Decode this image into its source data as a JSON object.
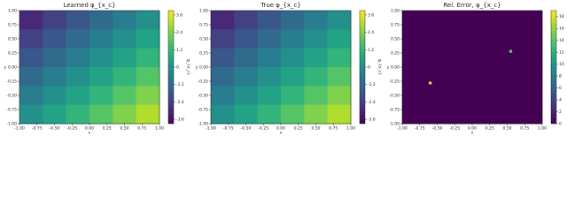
{
  "chart_data": [
    {
      "type": "heatmap",
      "title": "Learned φ_{x_c}",
      "x_label": "x",
      "y_label": "y",
      "colorbar_label": "φ_{x_c}",
      "colormap": "viridis",
      "xlim": [
        -1,
        1
      ],
      "ylim": [
        -1,
        1
      ],
      "xticks": [
        {
          "value": -1,
          "label": "-1.00"
        },
        {
          "value": -0.75,
          "label": "-0.75"
        },
        {
          "value": -0.5,
          "label": "-0.50"
        },
        {
          "value": -0.25,
          "label": "-0.25"
        },
        {
          "value": 0,
          "label": "0.00"
        },
        {
          "value": 0.25,
          "label": "0.25"
        },
        {
          "value": 0.5,
          "label": "0.50"
        },
        {
          "value": 0.75,
          "label": "0.75"
        },
        {
          "value": 1,
          "label": "1.00"
        }
      ],
      "yticks": [
        {
          "value": -1,
          "label": "-1.00"
        },
        {
          "value": -0.75,
          "label": "-0.75"
        },
        {
          "value": -0.5,
          "label": "-0.50"
        },
        {
          "value": -0.25,
          "label": "-0.25"
        },
        {
          "value": 0,
          "label": "0.00"
        },
        {
          "value": 0.25,
          "label": "0.25"
        },
        {
          "value": 0.5,
          "label": "0.50"
        },
        {
          "value": 0.75,
          "label": "0.75"
        },
        {
          "value": 1,
          "label": "1.00"
        }
      ],
      "clim": [
        -3.9,
        3.9
      ],
      "cticks": [
        -3.6,
        -2.4,
        -1.2,
        0,
        1.2,
        2.4,
        3.6
      ],
      "z": [
        [
          -3.0,
          -2.4,
          -1.8,
          -1.2,
          -0.6,
          0.0
        ],
        [
          -2.4,
          -1.8,
          -1.2,
          -0.6,
          0.0,
          0.6
        ],
        [
          -1.8,
          -1.2,
          -0.6,
          0.0,
          0.6,
          1.2
        ],
        [
          -1.2,
          -0.6,
          0.0,
          0.6,
          1.2,
          1.8
        ],
        [
          -0.6,
          0.0,
          0.6,
          1.2,
          1.8,
          2.4
        ],
        [
          0.0,
          0.6,
          1.2,
          1.8,
          2.4,
          3.0
        ]
      ]
    },
    {
      "type": "heatmap",
      "title": "True φ_{x_c}",
      "x_label": "x",
      "y_label": "y",
      "colorbar_label": "φ_{x_c}",
      "colormap": "viridis",
      "xlim": [
        -1,
        1
      ],
      "ylim": [
        -1,
        1
      ],
      "xticks": [
        {
          "value": -1,
          "label": "-1.00"
        },
        {
          "value": -0.75,
          "label": "-0.75"
        },
        {
          "value": -0.5,
          "label": "-0.50"
        },
        {
          "value": -0.25,
          "label": "-0.25"
        },
        {
          "value": 0,
          "label": "0.00"
        },
        {
          "value": 0.25,
          "label": "0.25"
        },
        {
          "value": 0.5,
          "label": "0.50"
        },
        {
          "value": 0.75,
          "label": "0.75"
        },
        {
          "value": 1,
          "label": "1.00"
        }
      ],
      "yticks": [
        {
          "value": -1,
          "label": "-1.00"
        },
        {
          "value": -0.75,
          "label": "-0.75"
        },
        {
          "value": -0.5,
          "label": "-0.50"
        },
        {
          "value": -0.25,
          "label": "-0.25"
        },
        {
          "value": 0,
          "label": "0.00"
        },
        {
          "value": 0.25,
          "label": "0.25"
        },
        {
          "value": 0.5,
          "label": "0.50"
        },
        {
          "value": 0.75,
          "label": "0.75"
        },
        {
          "value": 1,
          "label": "1.00"
        }
      ],
      "clim": [
        -3.9,
        3.9
      ],
      "cticks": [
        -3.6,
        -2.4,
        -1.2,
        0,
        1.2,
        2.4,
        3.6
      ],
      "z": [
        [
          -3.0,
          -2.4,
          -1.8,
          -1.2,
          -0.6,
          0.0
        ],
        [
          -2.4,
          -1.8,
          -1.2,
          -0.6,
          0.0,
          0.6
        ],
        [
          -1.8,
          -1.2,
          -0.6,
          0.0,
          0.6,
          1.2
        ],
        [
          -1.2,
          -0.6,
          0.0,
          0.6,
          1.2,
          1.8
        ],
        [
          -0.6,
          0.0,
          0.6,
          1.2,
          1.8,
          2.4
        ],
        [
          0.0,
          0.6,
          1.2,
          1.8,
          2.4,
          3.0
        ]
      ]
    },
    {
      "type": "heatmap",
      "title": "Rel. Error, φ_{x_c}",
      "x_label": "x",
      "y_label": "y",
      "colorbar_label": "Error",
      "colormap": "viridis",
      "xlim": [
        -1,
        1
      ],
      "ylim": [
        -1,
        1
      ],
      "xticks": [
        {
          "value": -1,
          "label": "-1.00"
        },
        {
          "value": -0.75,
          "label": "-0.75"
        },
        {
          "value": -0.5,
          "label": "-0.50"
        },
        {
          "value": -0.25,
          "label": "-0.25"
        },
        {
          "value": 0,
          "label": "0.00"
        },
        {
          "value": 0.25,
          "label": "0.25"
        },
        {
          "value": 0.5,
          "label": "0.50"
        },
        {
          "value": 0.75,
          "label": "0.75"
        },
        {
          "value": 1,
          "label": "1.00"
        }
      ],
      "yticks": [
        {
          "value": -1,
          "label": "-1.00"
        },
        {
          "value": -0.75,
          "label": "-0.75"
        },
        {
          "value": -0.5,
          "label": "-0.50"
        },
        {
          "value": -0.25,
          "label": "-0.25"
        },
        {
          "value": 0,
          "label": "0.00"
        },
        {
          "value": 0.25,
          "label": "0.25"
        },
        {
          "value": 0.5,
          "label": "0.50"
        },
        {
          "value": 0.75,
          "label": "0.75"
        },
        {
          "value": 1,
          "label": "1.00"
        }
      ],
      "clim": [
        0,
        19
      ],
      "cticks": [
        0,
        2,
        4,
        6,
        8,
        10,
        12,
        14,
        16,
        18
      ],
      "z": [
        [
          0,
          0,
          0,
          0,
          0,
          0
        ],
        [
          0,
          0,
          0,
          0,
          0,
          0
        ],
        [
          0,
          0,
          0,
          0,
          0,
          0
        ],
        [
          0,
          0,
          0,
          0,
          0,
          0
        ],
        [
          0,
          0,
          0,
          0,
          0,
          0
        ],
        [
          0,
          0,
          0,
          0,
          0,
          0
        ]
      ],
      "peaks": [
        {
          "x": -0.6,
          "y": -0.28,
          "value": 18
        },
        {
          "x": 0.55,
          "y": 0.28,
          "value": 14
        }
      ]
    }
  ]
}
